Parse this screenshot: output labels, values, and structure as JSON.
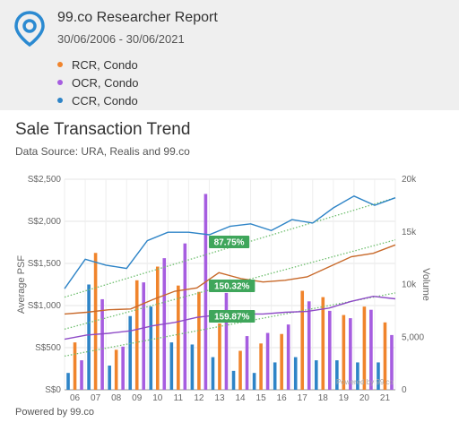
{
  "header": {
    "title": "99.co Researcher Report",
    "date_range": "30/06/2006 - 30/06/2021",
    "legend": [
      {
        "label": "RCR, Condo",
        "color": "#f0842c"
      },
      {
        "label": "OCR, Condo",
        "color": "#a65de0"
      },
      {
        "label": "CCR, Condo",
        "color": "#2e84c7"
      }
    ]
  },
  "chart_title": "Sale Transaction Trend",
  "chart_source": "Data Source: URA, Realis and 99.co",
  "footer": "Powered by 99.co",
  "chart_data": {
    "type": "bar",
    "title": "Sale Transaction Trend",
    "watermark": "Powered by 99.co",
    "categories": [
      "06",
      "07",
      "08",
      "09",
      "10",
      "11",
      "12",
      "13",
      "14",
      "15",
      "16",
      "17",
      "18",
      "19",
      "20",
      "21"
    ],
    "left_axis": {
      "label": "Average PSF",
      "range": [
        0,
        2500
      ],
      "ticks": [
        "S$0",
        "S$500",
        "S$1,000",
        "S$1,500",
        "S$2,000",
        "S$2,500"
      ],
      "tick_values": [
        0,
        500,
        1000,
        1500,
        2000,
        2500
      ]
    },
    "right_axis": {
      "label": "Volume",
      "range": [
        0,
        20000
      ],
      "ticks": [
        "0",
        "5,000",
        "10k",
        "15k",
        "20k"
      ],
      "tick_values": [
        0,
        5000,
        10000,
        15000,
        20000
      ]
    },
    "bar_series": [
      {
        "color": "#2e84c7",
        "values": [
          1600,
          10000,
          2300,
          7000,
          7900,
          4500,
          4300,
          3100,
          1800,
          1600,
          2600,
          3100,
          2800,
          2800,
          2600,
          2600
        ]
      },
      {
        "color": "#f0842c",
        "values": [
          4500,
          13000,
          3800,
          10400,
          11700,
          9900,
          9300,
          6300,
          3700,
          4400,
          5300,
          9400,
          8800,
          7100,
          7900,
          6400
        ]
      },
      {
        "color": "#a65de0",
        "values": [
          2800,
          8600,
          4100,
          10200,
          12500,
          13900,
          18600,
          9200,
          5100,
          5400,
          6200,
          8400,
          7500,
          6800,
          7600,
          5200
        ]
      }
    ],
    "line_series": [
      {
        "color": "#2e84c7",
        "values": [
          1200,
          1550,
          1480,
          1440,
          1770,
          1870,
          1870,
          1840,
          1940,
          1970,
          1890,
          2020,
          1980,
          2160,
          2300,
          2190,
          2280
        ],
        "x_positions": [
          0,
          1,
          2,
          3,
          4,
          5,
          6,
          7,
          8,
          9,
          10,
          11,
          12,
          13,
          14,
          15,
          16
        ]
      },
      {
        "color": "#c8692a",
        "values": [
          900,
          920,
          950,
          960,
          1070,
          1170,
          1210,
          1390,
          1320,
          1280,
          1300,
          1340,
          1460,
          1580,
          1620,
          1720
        ]
      },
      {
        "color": "#8e4bc7",
        "values": [
          600,
          650,
          670,
          700,
          760,
          800,
          860,
          890,
          900,
          900,
          920,
          930,
          970,
          1050,
          1110,
          1080
        ]
      }
    ],
    "trendlines": [
      {
        "color": "#6fbf6f",
        "start": 1100,
        "end": 2280
      },
      {
        "color": "#6fbf6f",
        "start": 720,
        "end": 1780
      },
      {
        "color": "#6fbf6f",
        "start": 400,
        "end": 1150
      }
    ],
    "growth_labels": [
      {
        "text": "87.75%",
        "series": "CCR, Condo"
      },
      {
        "text": "150.32%",
        "series": "RCR, Condo"
      },
      {
        "text": "159.87%",
        "series": "OCR, Condo"
      }
    ],
    "growth_label_color": "#3fa65b",
    "grid": true
  }
}
